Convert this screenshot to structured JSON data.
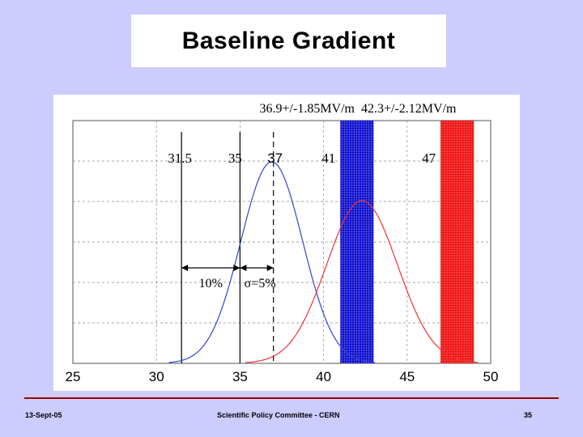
{
  "slide": {
    "title": "Baseline Gradient",
    "footer_left": "13-Sept-05",
    "footer_center": "Scientific Policy Committee - CERN",
    "footer_right": "35"
  },
  "chart_data": {
    "type": "line",
    "xlim": [
      25,
      50
    ],
    "x_ticks": [
      "25",
      "30",
      "35",
      "40",
      "45",
      "50"
    ],
    "grid": true,
    "annotations_top": [
      "36.9+/-1.85MV/m",
      "42.3+/-2.12MV/m"
    ],
    "vlines": [
      {
        "x": 31.5,
        "label": "31.5",
        "style": "solid"
      },
      {
        "x": 35,
        "label": "35",
        "style": "solid"
      },
      {
        "x": 37,
        "label": "37",
        "style": "dashed"
      }
    ],
    "bands": [
      {
        "x0": 41,
        "x1": 43,
        "label": "41",
        "color": "#0000cc"
      },
      {
        "x0": 47,
        "x1": 49,
        "label": "47",
        "color": "#ee0000"
      }
    ],
    "arrow_labels": [
      "10%",
      "σ=5%"
    ],
    "series": [
      {
        "color": "#3344cc",
        "mean": 36.9,
        "sigma": 1.85,
        "peak": 0.83
      },
      {
        "color": "#ee3333",
        "mean": 42.3,
        "sigma": 2.12,
        "peak": 0.67
      }
    ]
  }
}
